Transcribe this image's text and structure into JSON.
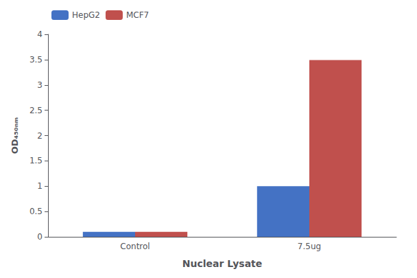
{
  "chart_data": {
    "type": "bar",
    "xlabel": "Nuclear Lysate",
    "ylabel": "OD₄₅₀ₙₘ",
    "categories": [
      "Control",
      "7.5ug"
    ],
    "series": [
      {
        "name": "HepG2",
        "color": "#4472C4",
        "values": [
          0.1,
          1.0
        ]
      },
      {
        "name": "MCF7",
        "color": "#C0504D",
        "values": [
          0.1,
          3.49
        ]
      }
    ],
    "ylim": [
      0,
      4.0
    ],
    "yticks": [
      0,
      0.5,
      1,
      1.5,
      2,
      2.5,
      3,
      3.5,
      4
    ],
    "grid": false,
    "legend": "upper left"
  }
}
